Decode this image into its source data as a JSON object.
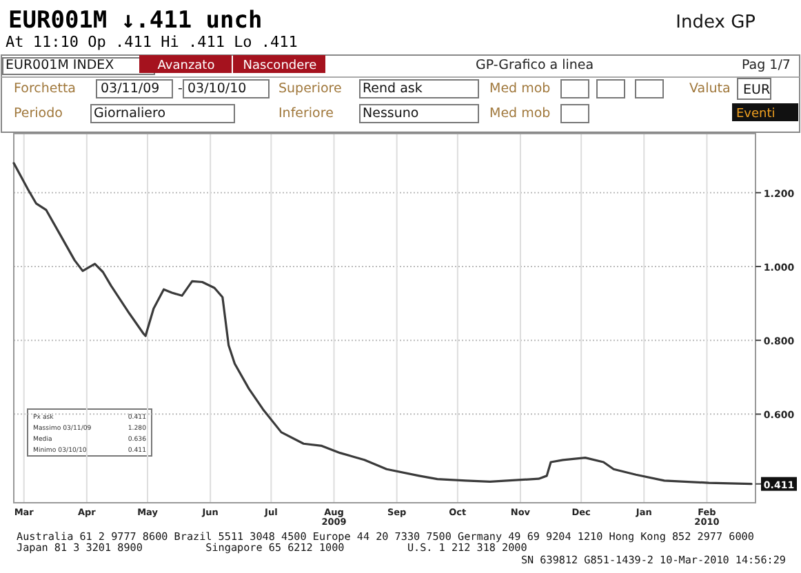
{
  "chart_data": {
    "type": "line",
    "title": "EUR001M ↓.411 unch",
    "subtitle": "At 11:10  Op .411 Hi .411 Lo .411",
    "x": [
      "2009-03-11",
      "2009-03-18",
      "2009-03-22",
      "2009-03-27",
      "2009-04-03",
      "2009-04-10",
      "2009-04-14",
      "2009-04-20",
      "2009-04-24",
      "2009-04-28",
      "2009-05-07",
      "2009-05-14",
      "2009-05-15",
      "2009-05-19",
      "2009-05-24",
      "2009-05-28",
      "2009-06-02",
      "2009-06-07",
      "2009-06-12",
      "2009-06-18",
      "2009-06-22",
      "2009-06-25",
      "2009-06-28",
      "2009-07-05",
      "2009-07-12",
      "2009-07-21",
      "2009-08-01",
      "2009-08-10",
      "2009-08-19",
      "2009-08-31",
      "2009-09-11",
      "2009-09-27",
      "2009-10-06",
      "2009-10-20",
      "2009-11-01",
      "2009-11-25",
      "2009-11-29",
      "2009-12-01",
      "2009-12-07",
      "2009-12-18",
      "2009-12-27",
      "2010-01-01",
      "2010-01-12",
      "2010-01-26",
      "2010-02-17",
      "2010-03-03",
      "2010-03-10"
    ],
    "series": [
      {
        "color": "#3a3a3a",
        "values": [
          1.28,
          1.209,
          1.171,
          1.153,
          1.085,
          1.017,
          0.988,
          1.007,
          0.985,
          0.948,
          0.873,
          0.818,
          0.812,
          0.886,
          0.938,
          0.929,
          0.921,
          0.96,
          0.958,
          0.942,
          0.917,
          0.787,
          0.737,
          0.669,
          0.613,
          0.551,
          0.52,
          0.514,
          0.495,
          0.476,
          0.451,
          0.433,
          0.424,
          0.42,
          0.417,
          0.425,
          0.433,
          0.47,
          0.476,
          0.482,
          0.47,
          0.451,
          0.436,
          0.42,
          0.414,
          0.412,
          0.411
        ]
      }
    ],
    "xlim": [
      "2009-03-11",
      "2010-03-12"
    ],
    "xticks": [
      {
        "value": "2009-03-16",
        "label": "Mar"
      },
      {
        "value": "2009-04-16",
        "label": "Apr"
      },
      {
        "value": "2009-05-16",
        "label": "May"
      },
      {
        "value": "2009-06-16",
        "label": "Jun"
      },
      {
        "value": "2009-07-16",
        "label": "Jul"
      },
      {
        "value": "2009-08-16",
        "label": "Aug\n2009"
      },
      {
        "value": "2009-09-16",
        "label": "Sep"
      },
      {
        "value": "2009-10-16",
        "label": "Oct"
      },
      {
        "value": "2009-11-16",
        "label": "Nov"
      },
      {
        "value": "2009-12-16",
        "label": "Dec"
      },
      {
        "value": "2010-01-16",
        "label": "Jan"
      },
      {
        "value": "2010-02-16",
        "label": "Feb\n2010"
      }
    ],
    "ylim": [
      0.36,
      1.36
    ],
    "yticks": [
      {
        "value": 0.411,
        "label": "0.411"
      },
      {
        "value": 0.6,
        "label": "0.600"
      },
      {
        "value": 0.8,
        "label": "0.800"
      },
      {
        "value": 1.0,
        "label": "1.000"
      },
      {
        "value": 1.2,
        "label": "1.200"
      }
    ],
    "grid": true,
    "annotations": [
      "Index GP",
      "EUR001M INDEX",
      "Avanzato",
      "Nascondere",
      "GP-Grafico a linea",
      "Pag 1/7",
      "Forchetta",
      "03/11/09",
      "-",
      "03/10/10",
      "Superiore",
      "Rend ask",
      "Med mob",
      "Valuta",
      "EUR",
      "Periodo",
      "Giornaliero",
      "Inferiore",
      "Nessuno",
      "Med mob",
      "Eventi",
      "Px ask",
      "0.411",
      "Massimo 03/11/09",
      "1.280",
      "Media",
      "0.636",
      "Minimo 03/10/10",
      "0.411",
      "Australia 61 2 9777 8600 Brazil 5511 3048 4500 Europe 44 20 7330 7500 Germany 49 69 9204 1210 Hong Kong 852 2977 6000",
      "Japan 81 3 3201 8900          Singapore 65 6212 1000          U.S. 1 212 318 2000",
      "SN 639812 G851-1439-2 10-Mar-2010 14:56:29"
    ]
  }
}
